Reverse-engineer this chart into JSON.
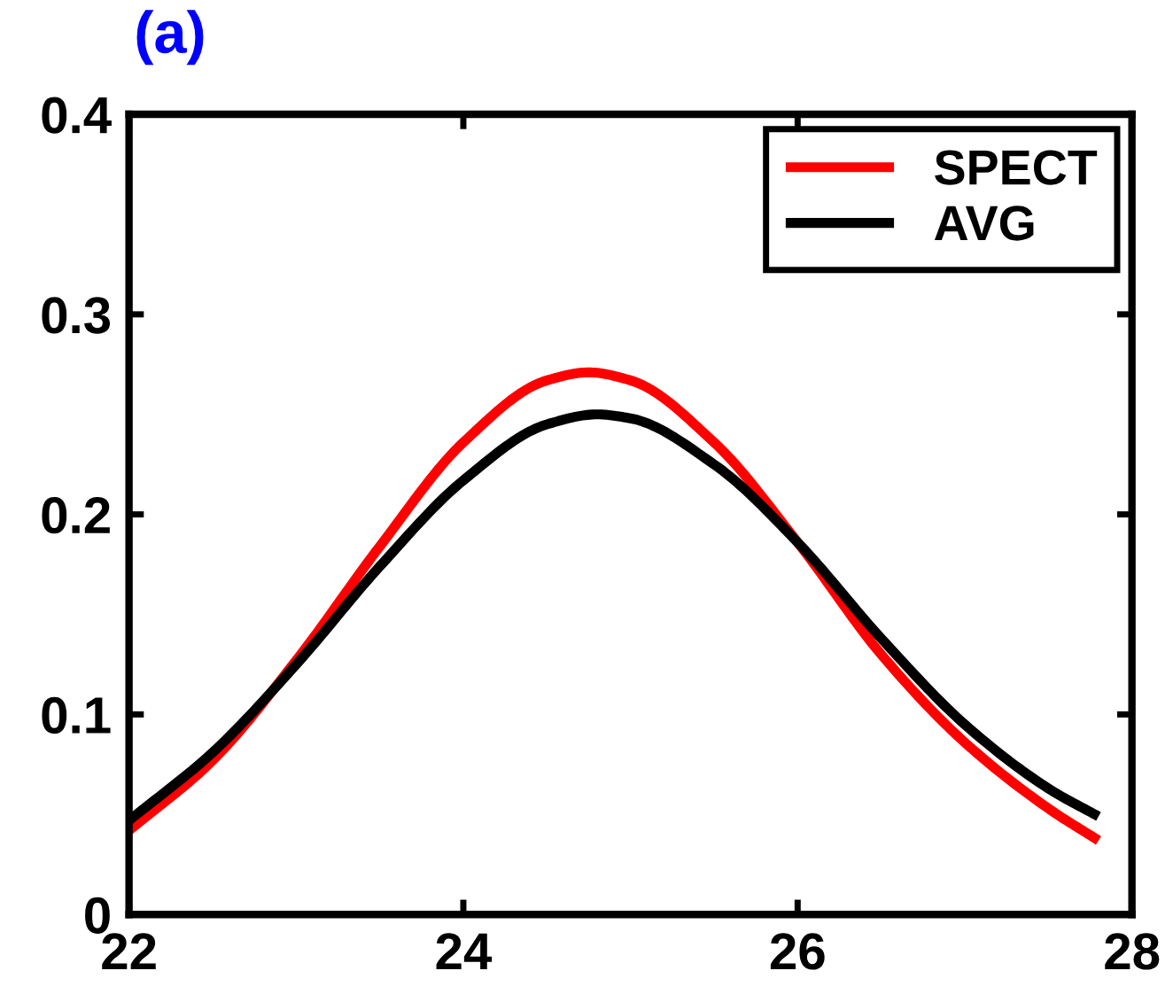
{
  "chart_data": {
    "type": "line",
    "title": "(a)",
    "xlim": [
      22,
      28
    ],
    "xticks": [
      22,
      24,
      26,
      28
    ],
    "ylim": [
      0,
      0.4
    ],
    "yticks": [
      0,
      0.1,
      0.2,
      0.3,
      0.4
    ],
    "grid": false,
    "legend": "top right",
    "line_style": "solid",
    "marker": "none",
    "series": [
      {
        "name": "SPECT",
        "color": "#ff0000",
        "x": [
          22,
          22.5,
          23,
          23.5,
          24,
          24.5,
          24.75,
          25,
          25.5,
          26,
          26.5,
          27,
          27.5,
          27.8
        ],
        "values": [
          0.042,
          0.077,
          0.127,
          0.184,
          0.236,
          0.267,
          0.271,
          0.267,
          0.236,
          0.186,
          0.13,
          0.086,
          0.053,
          0.037
        ]
      },
      {
        "name": "AVG",
        "color": "#000000",
        "x": [
          22,
          22.5,
          23,
          23.5,
          24,
          24.5,
          24.8,
          25,
          25.5,
          26,
          26.5,
          27,
          27.5,
          27.8
        ],
        "values": [
          0.047,
          0.081,
          0.125,
          0.174,
          0.217,
          0.245,
          0.25,
          0.248,
          0.225,
          0.186,
          0.138,
          0.095,
          0.063,
          0.049
        ]
      }
    ]
  }
}
